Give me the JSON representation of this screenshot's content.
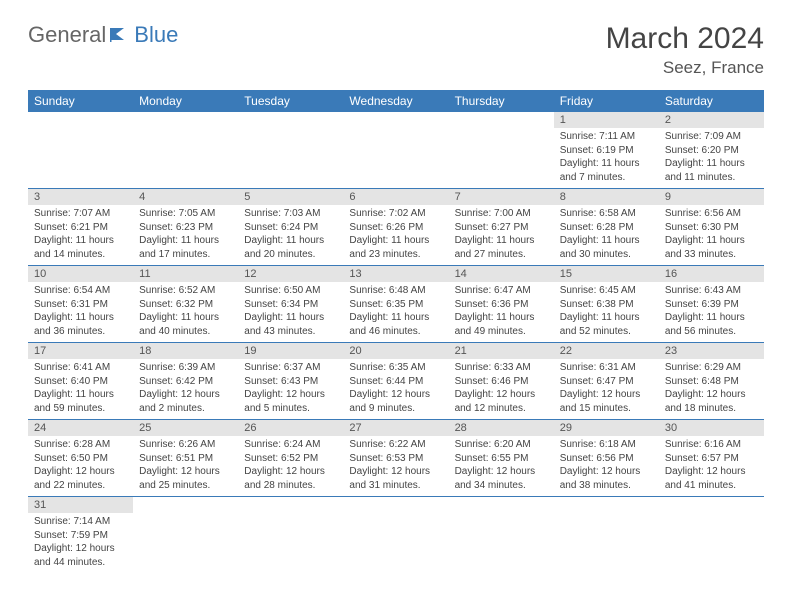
{
  "brand": {
    "part1": "General",
    "part2": "Blue"
  },
  "title": "March 2024",
  "location": "Seez, France",
  "colors": {
    "headerBg": "#3a7ab8",
    "dayNumBg": "#e4e4e4",
    "rowBorder": "#3a7ab8"
  },
  "weekdays": [
    "Sunday",
    "Monday",
    "Tuesday",
    "Wednesday",
    "Thursday",
    "Friday",
    "Saturday"
  ],
  "weeks": [
    [
      null,
      null,
      null,
      null,
      null,
      {
        "n": "1",
        "sr": "7:11 AM",
        "ss": "6:19 PM",
        "dl": "11 hours and 7 minutes."
      },
      {
        "n": "2",
        "sr": "7:09 AM",
        "ss": "6:20 PM",
        "dl": "11 hours and 11 minutes."
      }
    ],
    [
      {
        "n": "3",
        "sr": "7:07 AM",
        "ss": "6:21 PM",
        "dl": "11 hours and 14 minutes."
      },
      {
        "n": "4",
        "sr": "7:05 AM",
        "ss": "6:23 PM",
        "dl": "11 hours and 17 minutes."
      },
      {
        "n": "5",
        "sr": "7:03 AM",
        "ss": "6:24 PM",
        "dl": "11 hours and 20 minutes."
      },
      {
        "n": "6",
        "sr": "7:02 AM",
        "ss": "6:26 PM",
        "dl": "11 hours and 23 minutes."
      },
      {
        "n": "7",
        "sr": "7:00 AM",
        "ss": "6:27 PM",
        "dl": "11 hours and 27 minutes."
      },
      {
        "n": "8",
        "sr": "6:58 AM",
        "ss": "6:28 PM",
        "dl": "11 hours and 30 minutes."
      },
      {
        "n": "9",
        "sr": "6:56 AM",
        "ss": "6:30 PM",
        "dl": "11 hours and 33 minutes."
      }
    ],
    [
      {
        "n": "10",
        "sr": "6:54 AM",
        "ss": "6:31 PM",
        "dl": "11 hours and 36 minutes."
      },
      {
        "n": "11",
        "sr": "6:52 AM",
        "ss": "6:32 PM",
        "dl": "11 hours and 40 minutes."
      },
      {
        "n": "12",
        "sr": "6:50 AM",
        "ss": "6:34 PM",
        "dl": "11 hours and 43 minutes."
      },
      {
        "n": "13",
        "sr": "6:48 AM",
        "ss": "6:35 PM",
        "dl": "11 hours and 46 minutes."
      },
      {
        "n": "14",
        "sr": "6:47 AM",
        "ss": "6:36 PM",
        "dl": "11 hours and 49 minutes."
      },
      {
        "n": "15",
        "sr": "6:45 AM",
        "ss": "6:38 PM",
        "dl": "11 hours and 52 minutes."
      },
      {
        "n": "16",
        "sr": "6:43 AM",
        "ss": "6:39 PM",
        "dl": "11 hours and 56 minutes."
      }
    ],
    [
      {
        "n": "17",
        "sr": "6:41 AM",
        "ss": "6:40 PM",
        "dl": "11 hours and 59 minutes."
      },
      {
        "n": "18",
        "sr": "6:39 AM",
        "ss": "6:42 PM",
        "dl": "12 hours and 2 minutes."
      },
      {
        "n": "19",
        "sr": "6:37 AM",
        "ss": "6:43 PM",
        "dl": "12 hours and 5 minutes."
      },
      {
        "n": "20",
        "sr": "6:35 AM",
        "ss": "6:44 PM",
        "dl": "12 hours and 9 minutes."
      },
      {
        "n": "21",
        "sr": "6:33 AM",
        "ss": "6:46 PM",
        "dl": "12 hours and 12 minutes."
      },
      {
        "n": "22",
        "sr": "6:31 AM",
        "ss": "6:47 PM",
        "dl": "12 hours and 15 minutes."
      },
      {
        "n": "23",
        "sr": "6:29 AM",
        "ss": "6:48 PM",
        "dl": "12 hours and 18 minutes."
      }
    ],
    [
      {
        "n": "24",
        "sr": "6:28 AM",
        "ss": "6:50 PM",
        "dl": "12 hours and 22 minutes."
      },
      {
        "n": "25",
        "sr": "6:26 AM",
        "ss": "6:51 PM",
        "dl": "12 hours and 25 minutes."
      },
      {
        "n": "26",
        "sr": "6:24 AM",
        "ss": "6:52 PM",
        "dl": "12 hours and 28 minutes."
      },
      {
        "n": "27",
        "sr": "6:22 AM",
        "ss": "6:53 PM",
        "dl": "12 hours and 31 minutes."
      },
      {
        "n": "28",
        "sr": "6:20 AM",
        "ss": "6:55 PM",
        "dl": "12 hours and 34 minutes."
      },
      {
        "n": "29",
        "sr": "6:18 AM",
        "ss": "6:56 PM",
        "dl": "12 hours and 38 minutes."
      },
      {
        "n": "30",
        "sr": "6:16 AM",
        "ss": "6:57 PM",
        "dl": "12 hours and 41 minutes."
      }
    ],
    [
      {
        "n": "31",
        "sr": "7:14 AM",
        "ss": "7:59 PM",
        "dl": "12 hours and 44 minutes."
      },
      null,
      null,
      null,
      null,
      null,
      null
    ]
  ],
  "labels": {
    "sunrise": "Sunrise:",
    "sunset": "Sunset:",
    "daylight": "Daylight:"
  }
}
